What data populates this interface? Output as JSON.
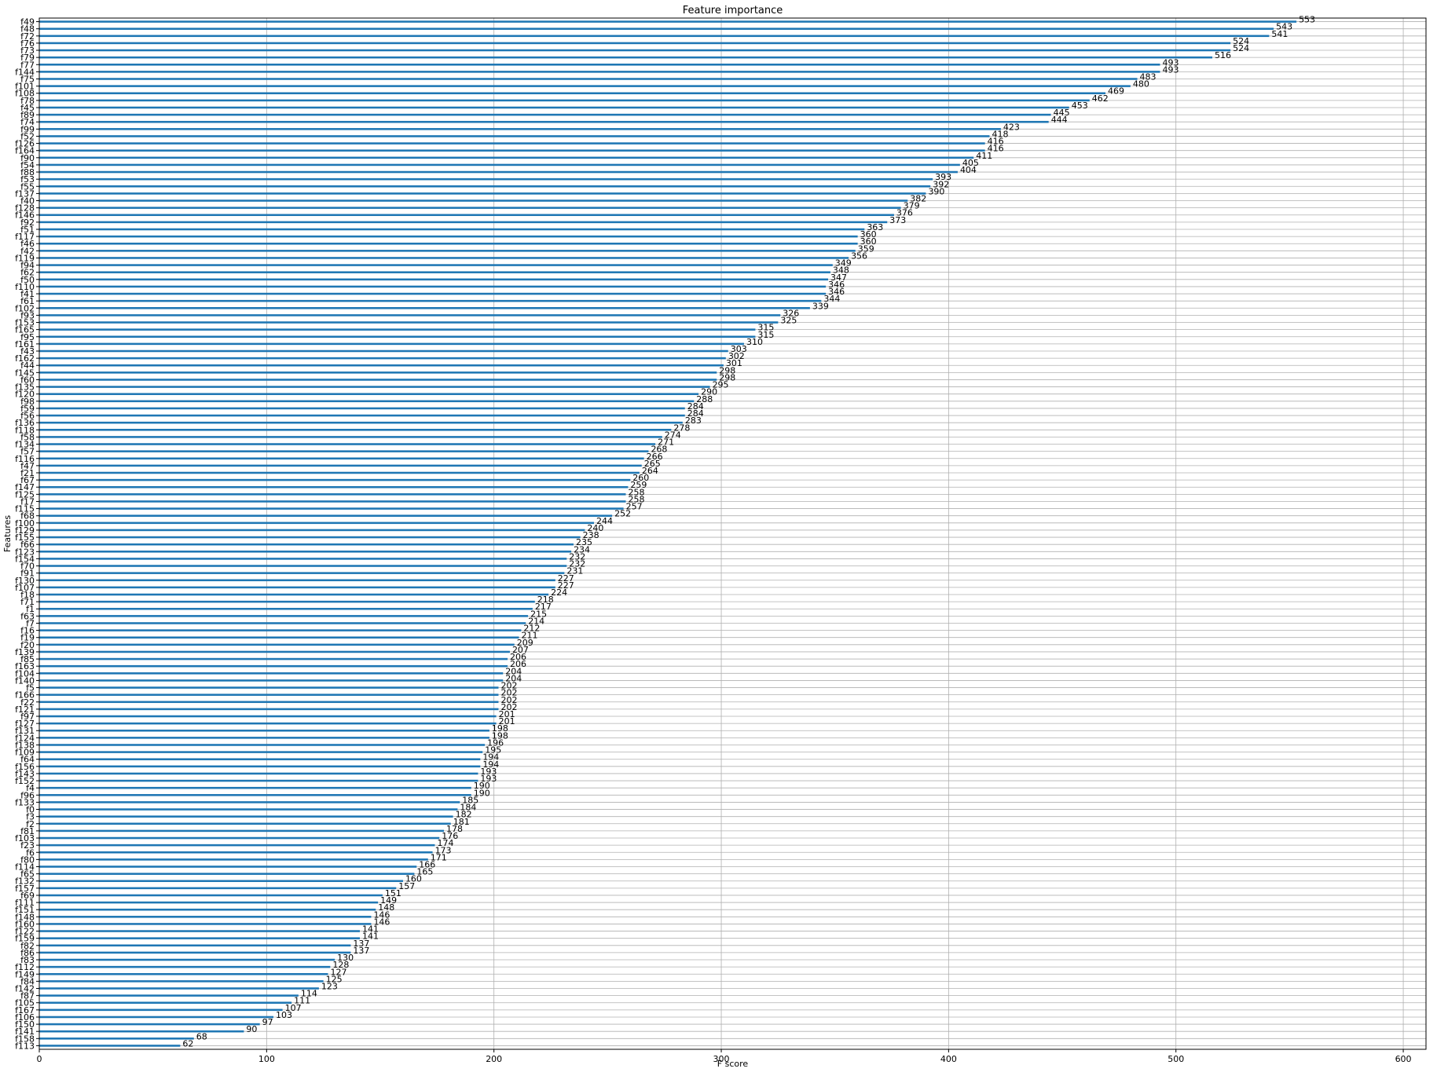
{
  "chart_data": {
    "type": "bar",
    "orientation": "horizontal",
    "title": "Feature importance",
    "xlabel": "F score",
    "ylabel": "Features",
    "xlim": [
      0,
      610
    ],
    "x_ticks": [
      0,
      100,
      200,
      300,
      400,
      500,
      600
    ],
    "grid": true,
    "bar_color": "#1f77b4",
    "categories": [
      "f49",
      "f48",
      "f72",
      "f76",
      "f73",
      "f79",
      "f77",
      "f144",
      "f75",
      "f101",
      "f108",
      "f78",
      "f45",
      "f89",
      "f74",
      "f99",
      "f52",
      "f126",
      "f164",
      "f90",
      "f54",
      "f88",
      "f53",
      "f55",
      "f137",
      "f40",
      "f128",
      "f146",
      "f92",
      "f51",
      "f117",
      "f46",
      "f42",
      "f119",
      "f94",
      "f62",
      "f50",
      "f110",
      "f41",
      "f61",
      "f102",
      "f93",
      "f153",
      "f165",
      "f95",
      "f161",
      "f43",
      "f162",
      "f44",
      "f145",
      "f60",
      "f135",
      "f120",
      "f98",
      "f59",
      "f56",
      "f136",
      "f118",
      "f58",
      "f134",
      "f57",
      "f116",
      "f47",
      "f21",
      "f67",
      "f147",
      "f125",
      "f17",
      "f115",
      "f68",
      "f100",
      "f129",
      "f155",
      "f66",
      "f123",
      "f154",
      "f70",
      "f91",
      "f130",
      "f107",
      "f18",
      "f71",
      "f1",
      "f63",
      "f7",
      "f16",
      "f19",
      "f20",
      "f139",
      "f85",
      "f163",
      "f104",
      "f140",
      "f5",
      "f166",
      "f22",
      "f121",
      "f97",
      "f127",
      "f131",
      "f124",
      "f138",
      "f109",
      "f64",
      "f156",
      "f143",
      "f152",
      "f4",
      "f96",
      "f133",
      "f0",
      "f3",
      "f2",
      "f81",
      "f103",
      "f23",
      "f6",
      "f80",
      "f114",
      "f65",
      "f132",
      "f157",
      "f69",
      "f111",
      "f151",
      "f148",
      "f160",
      "f122",
      "f159",
      "f82",
      "f86",
      "f83",
      "f112",
      "f149",
      "f84",
      "f142",
      "f87",
      "f105",
      "f167",
      "f106",
      "f150",
      "f141",
      "f158",
      "f113"
    ],
    "values": [
      553,
      543,
      541,
      524,
      524,
      516,
      493,
      493,
      483,
      480,
      469,
      462,
      453,
      445,
      444,
      423,
      418,
      416,
      416,
      411,
      405,
      404,
      393,
      392,
      390,
      382,
      379,
      376,
      373,
      363,
      360,
      360,
      359,
      356,
      349,
      348,
      347,
      346,
      346,
      344,
      339,
      326,
      325,
      315,
      315,
      310,
      303,
      302,
      301,
      298,
      298,
      295,
      290,
      288,
      284,
      284,
      283,
      278,
      274,
      271,
      268,
      266,
      265,
      264,
      260,
      259,
      258,
      258,
      257,
      252,
      244,
      240,
      238,
      235,
      234,
      232,
      232,
      231,
      227,
      227,
      224,
      218,
      217,
      215,
      214,
      212,
      211,
      209,
      207,
      206,
      206,
      204,
      204,
      202,
      202,
      202,
      202,
      201,
      201,
      198,
      198,
      196,
      195,
      194,
      194,
      193,
      193,
      190,
      190,
      185,
      184,
      182,
      181,
      178,
      176,
      174,
      173,
      171,
      166,
      165,
      160,
      157,
      151,
      149,
      148,
      146,
      146,
      141,
      141,
      137,
      137,
      130,
      128,
      127,
      125,
      123,
      114,
      111,
      107,
      103,
      97,
      90,
      68,
      62
    ]
  }
}
